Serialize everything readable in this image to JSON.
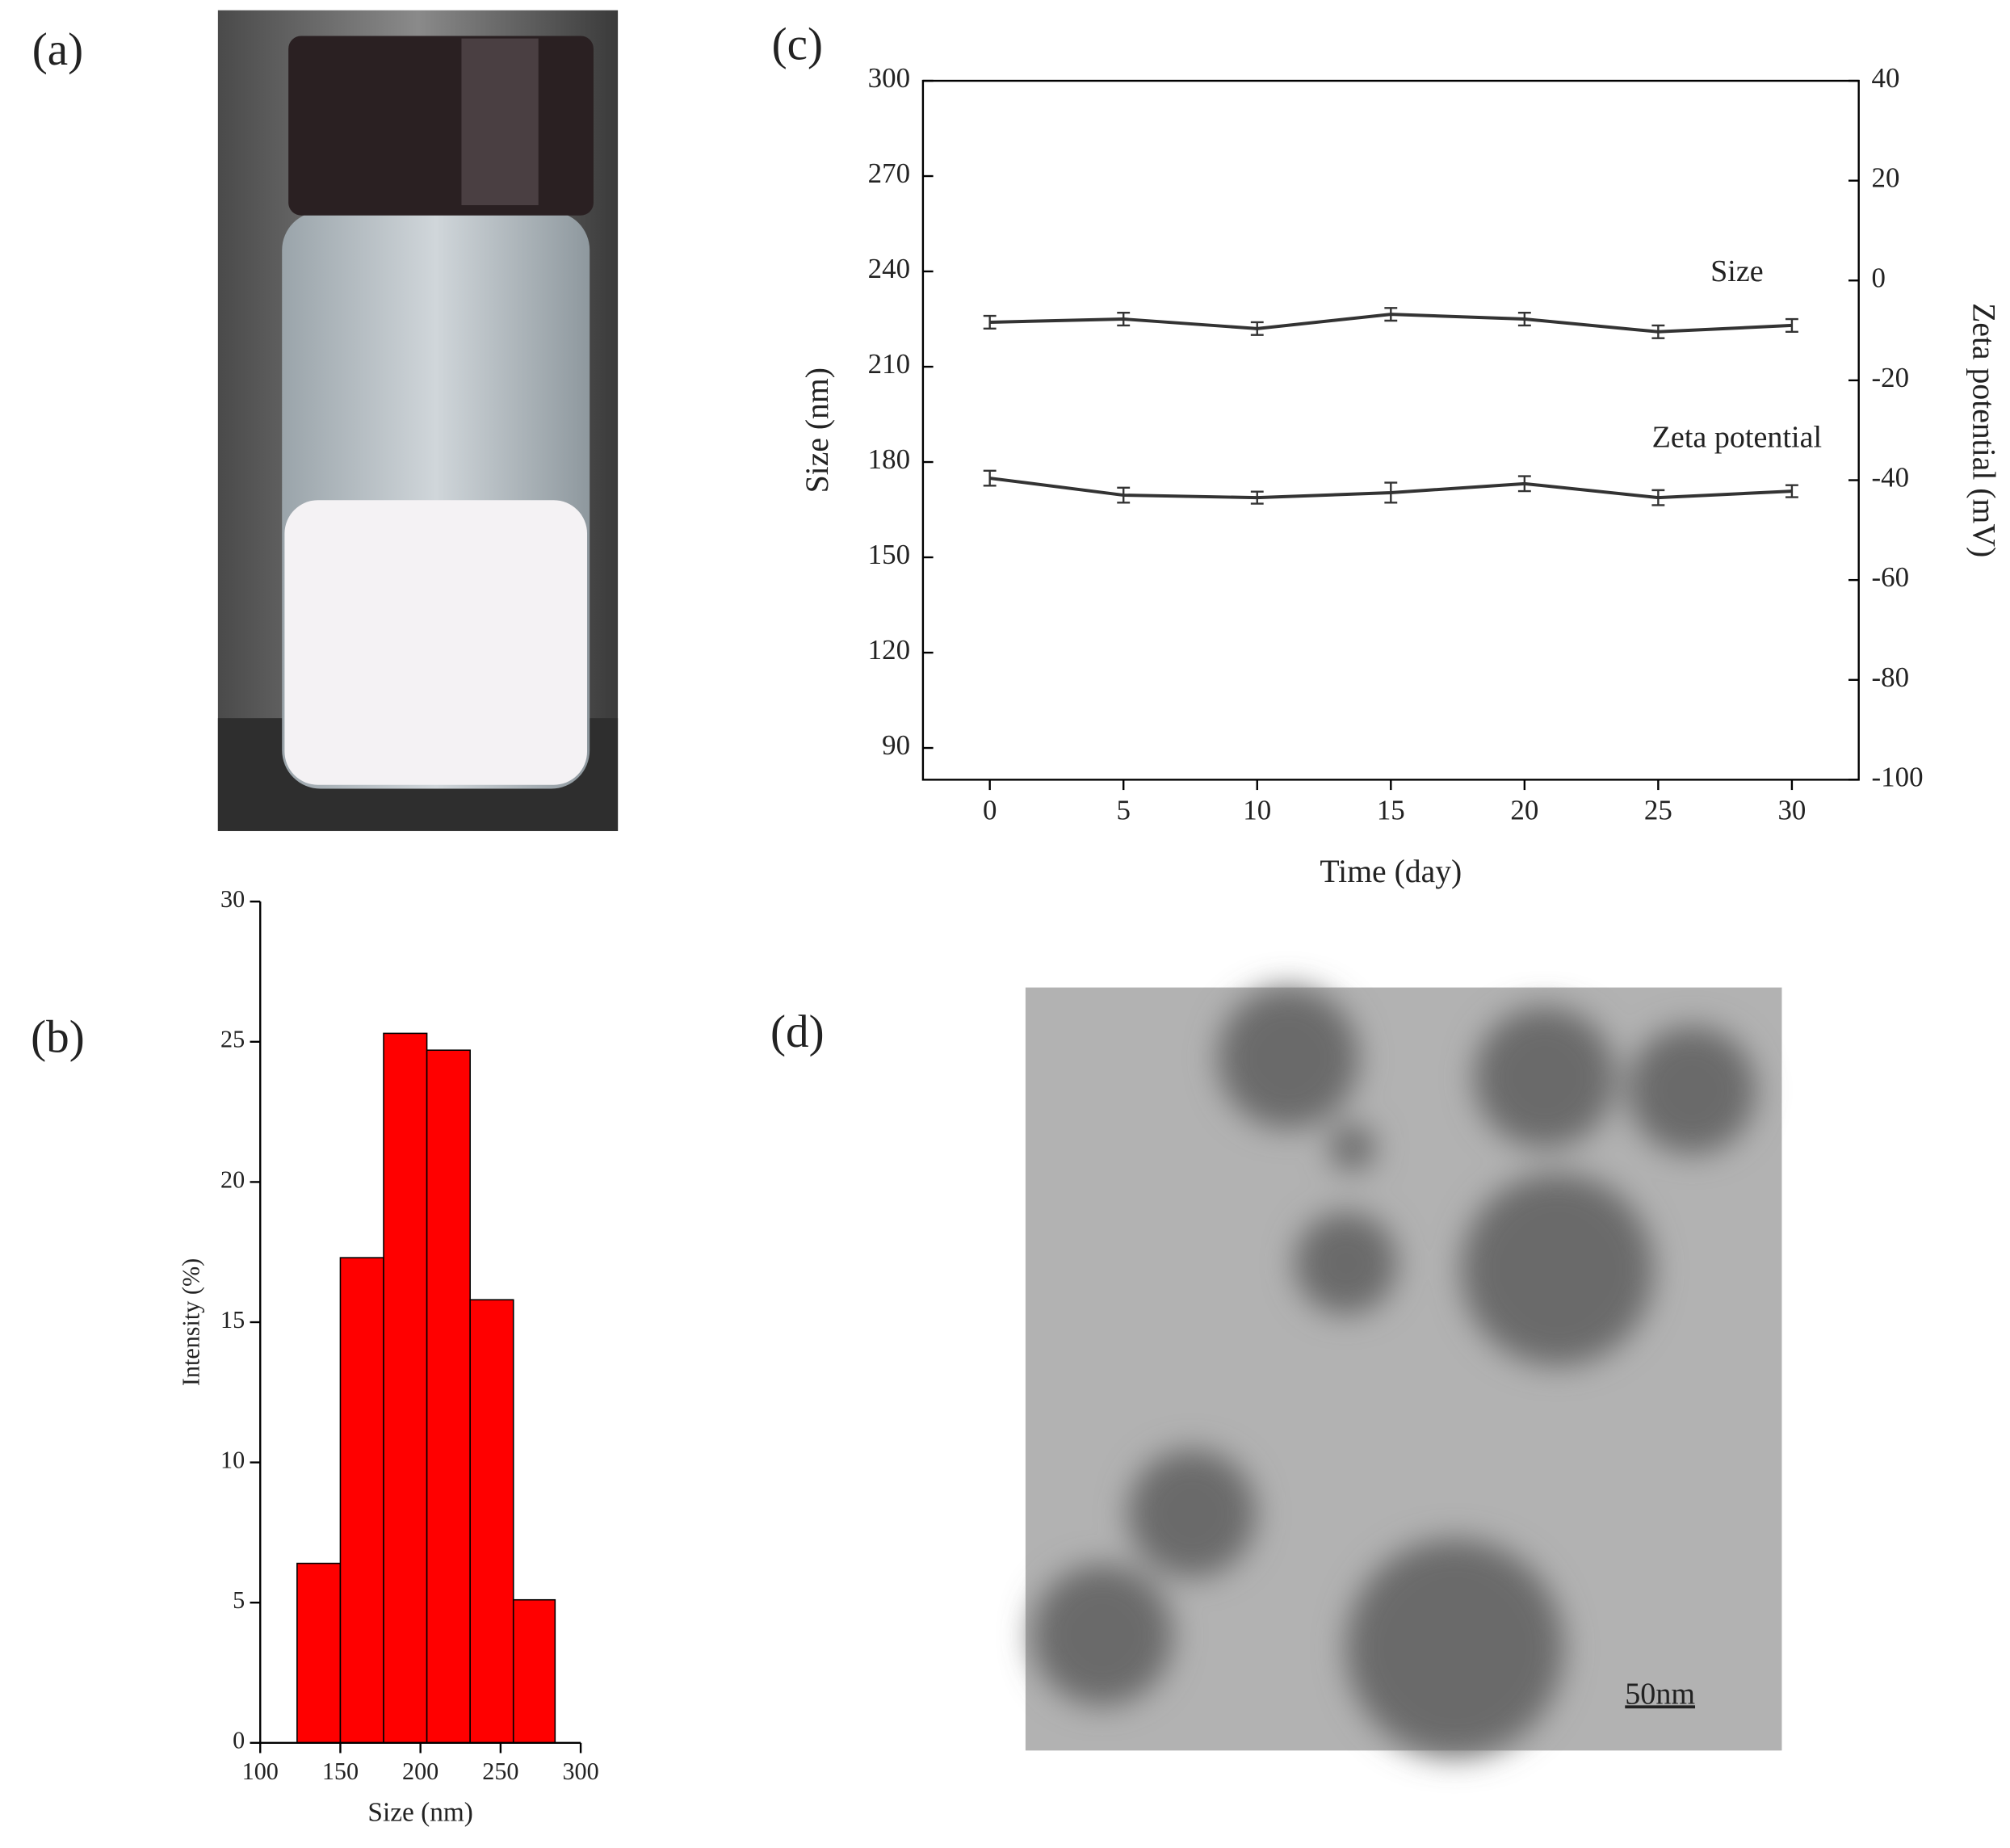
{
  "panel_labels": [
    "(a)",
    "(b)",
    "(c)",
    "(d)"
  ],
  "scale_bar": "50nm",
  "chart_data": [
    {
      "type": "histogram",
      "xlabel": "Size (nm)",
      "ylabel": "Intensity (%)",
      "bins": [
        123,
        150,
        177,
        204,
        231,
        258,
        284
      ],
      "values": [
        6.4,
        17.3,
        25.3,
        24.7,
        15.8,
        5.1
      ],
      "color": "#ff0000",
      "xlim": [
        100,
        300
      ],
      "xticks": [
        100,
        150,
        200,
        250,
        300
      ],
      "ylim": [
        0,
        30
      ],
      "yticks": [
        0,
        5,
        10,
        15,
        20,
        25,
        30
      ]
    },
    {
      "type": "line",
      "xlabel": "Time (day)",
      "ylabel": "Size (nm)",
      "y2label": "Zeta potential (mV)",
      "x": [
        0,
        5,
        10,
        15,
        20,
        25,
        30
      ],
      "series": [
        {
          "name": "Size",
          "color": "#333333",
          "values": [
            224,
            225,
            222,
            226.5,
            225,
            221,
            223
          ],
          "errors": [
            2,
            2,
            2,
            2,
            2,
            2,
            2
          ]
        },
        {
          "name": "Zeta potential",
          "color": "#333333",
          "axis": "y2",
          "values": [
            -39.6,
            -43.0,
            -43.5,
            -42.5,
            -40.7,
            -43.5,
            -42.2
          ],
          "errors": [
            1.5,
            1.5,
            1.2,
            2,
            1.5,
            1.5,
            1.2
          ]
        }
      ],
      "xlim": [
        -2.5,
        32.5
      ],
      "xticks": [
        0,
        5,
        10,
        15,
        20,
        25,
        30
      ],
      "ylim": [
        80,
        300
      ],
      "yticks": [
        90,
        120,
        150,
        180,
        210,
        240,
        270,
        300
      ],
      "y2lim": [
        -100,
        40
      ],
      "y2ticks": [
        -100,
        -80,
        -60,
        -40,
        -20,
        0,
        20,
        40
      ]
    }
  ]
}
